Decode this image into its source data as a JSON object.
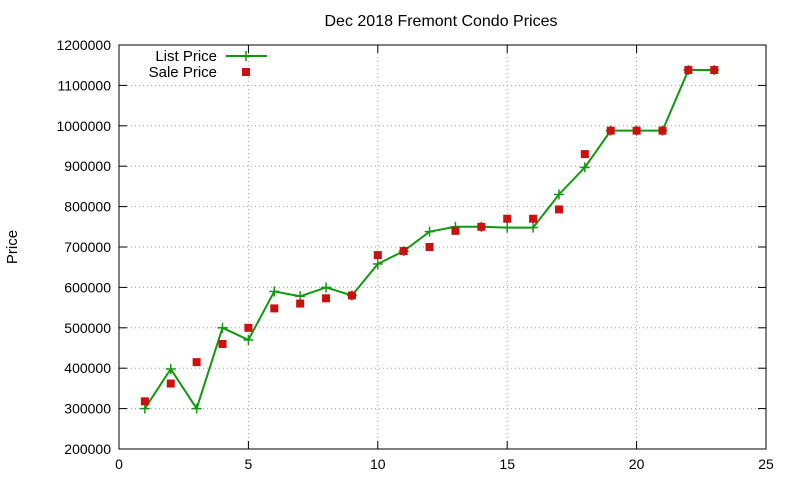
{
  "chart_data": {
    "type": "line",
    "title": "Dec 2018 Fremont Condo Prices",
    "xlabel": "",
    "ylabel": "Price",
    "xlim": [
      0,
      25
    ],
    "ylim": [
      200000,
      1200000
    ],
    "xticks": [
      0,
      5,
      10,
      15,
      20,
      25
    ],
    "yticks": [
      200000,
      300000,
      400000,
      500000,
      600000,
      700000,
      800000,
      900000,
      1000000,
      1100000,
      1200000
    ],
    "grid": true,
    "legend_position": "top-left",
    "series": [
      {
        "name": "List Price",
        "style": "line-plus",
        "color": "#109910",
        "x": [
          1,
          2,
          3,
          4,
          5,
          6,
          7,
          8,
          9,
          10,
          11,
          12,
          13,
          14,
          15,
          16,
          17,
          18,
          19,
          20,
          21,
          22,
          23
        ],
        "y": [
          300000,
          398000,
          300000,
          500000,
          470000,
          590000,
          578000,
          600000,
          580000,
          658000,
          690000,
          738000,
          750000,
          750000,
          748000,
          748000,
          830000,
          897000,
          988000,
          988000,
          988000,
          1138000,
          1138000
        ]
      },
      {
        "name": "Sale Price",
        "style": "square",
        "color": "#cc1010",
        "x": [
          1,
          2,
          3,
          4,
          5,
          6,
          7,
          8,
          9,
          10,
          11,
          12,
          13,
          14,
          15,
          16,
          17,
          18,
          19,
          20,
          21,
          22,
          23
        ],
        "y": [
          318000,
          362000,
          415000,
          460000,
          500000,
          548000,
          560000,
          573000,
          580000,
          680000,
          690000,
          700000,
          740000,
          750000,
          770000,
          770000,
          793000,
          930000,
          988000,
          988000,
          988000,
          1138000,
          1138000
        ]
      }
    ]
  }
}
